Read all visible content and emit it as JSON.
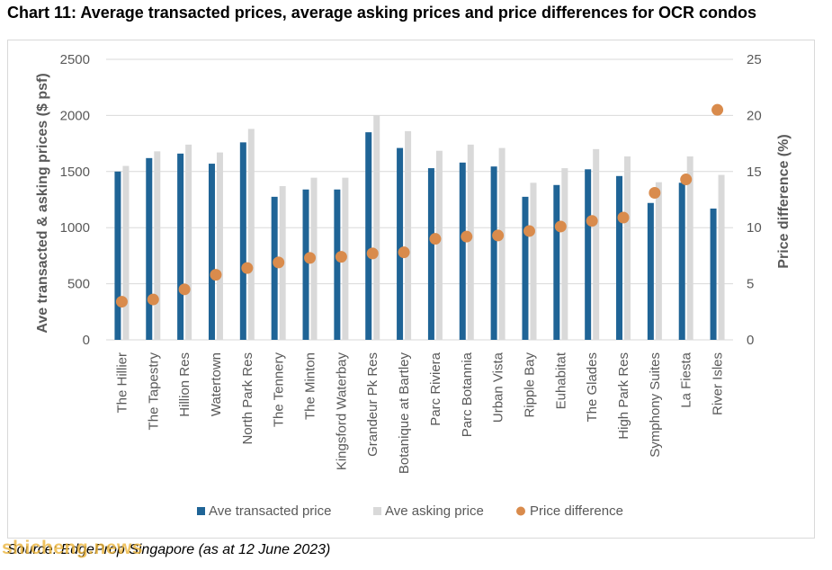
{
  "title": "Chart 11: Average transacted prices, average asking prices and price differences for OCR condos",
  "source": "Source: EdgeProp Singapore (as at 12 June 2023)",
  "watermark": "shicheng.news",
  "colors": {
    "transacted": "#1f6496",
    "asking": "#d9d9d9",
    "difference": "#d98b4c",
    "gridline": "#d9d9d9",
    "axis_text": "#595959",
    "frame": "#d9d9d9"
  },
  "chart_data": {
    "type": "bar",
    "categories": [
      "The Hillier",
      "The Tapestry",
      "Hillion Res",
      "Watertown",
      "North Park Res",
      "The Tennery",
      "The Minton",
      "Kingsford Waterbay",
      "Grandeur Pk Res",
      "Botanique at Bartley",
      "Parc Riviera",
      "Parc Botannia",
      "Urban Vista",
      "Ripple Bay",
      "Euhabitat",
      "The Glades",
      "High Park Res",
      "Symphony Suites",
      "La Fiesta",
      "River Isles"
    ],
    "series": [
      {
        "name": "Ave transacted price",
        "type": "bar",
        "axis": "left",
        "values": [
          1500,
          1620,
          1660,
          1570,
          1760,
          1275,
          1340,
          1340,
          1850,
          1710,
          1530,
          1580,
          1545,
          1275,
          1380,
          1520,
          1460,
          1220,
          1400,
          1170
        ]
      },
      {
        "name": "Ave asking price",
        "type": "bar",
        "axis": "left",
        "values": [
          1550,
          1680,
          1740,
          1670,
          1880,
          1370,
          1445,
          1445,
          2000,
          1860,
          1685,
          1740,
          1710,
          1400,
          1530,
          1700,
          1635,
          1405,
          1635,
          1470
        ]
      },
      {
        "name": "Price difference",
        "type": "scatter",
        "axis": "right",
        "values": [
          3.4,
          3.6,
          4.5,
          5.8,
          6.4,
          6.9,
          7.3,
          7.4,
          7.7,
          7.8,
          9.0,
          9.2,
          9.3,
          9.7,
          10.1,
          10.6,
          10.9,
          13.1,
          14.3,
          20.5
        ]
      }
    ],
    "ylabel": "Ave transacted & asking prices ($ psf)",
    "y2label": "Price difference (%)",
    "ylim": [
      0,
      2500
    ],
    "y_ticks": [
      "0",
      "500",
      "1000",
      "1500",
      "2000",
      "2500"
    ],
    "y2lim": [
      0,
      25
    ],
    "y2_ticks": [
      "0",
      "5",
      "10",
      "15",
      "20",
      "25"
    ],
    "grid": true,
    "legend_position": "bottom"
  }
}
